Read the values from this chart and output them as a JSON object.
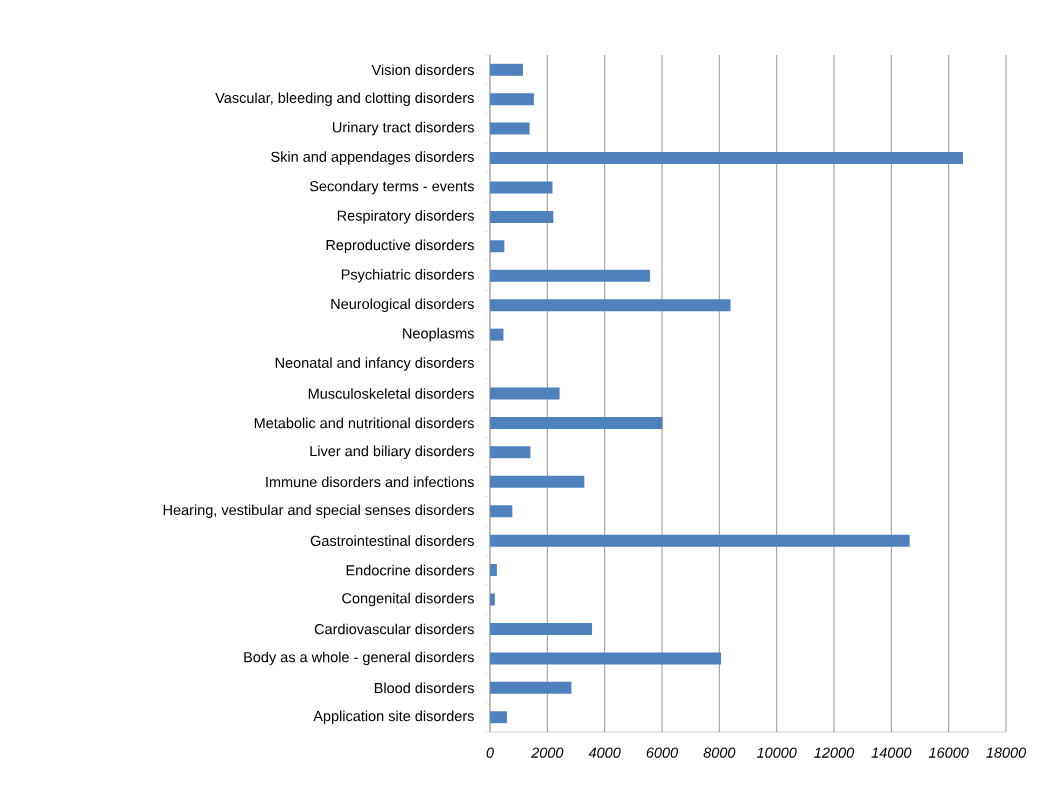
{
  "chart_data": {
    "type": "bar",
    "orientation": "horizontal",
    "categories": [
      "Vision disorders",
      "Vascular, bleeding and clotting disorders",
      "Urinary tract disorders",
      "Skin and appendages disorders",
      "Secondary terms - events",
      "Respiratory disorders",
      "Reproductive disorders",
      "Psychiatric disorders",
      "Neurological disorders",
      "Neoplasms",
      "Neonatal and infancy disorders",
      "Musculoskeletal disorders",
      "Metabolic and nutritional disorders",
      "Liver and biliary disorders",
      "Immune disorders and infections",
      "Hearing, vestibular and special senses disorders",
      "Gastrointestinal disorders",
      "Endocrine disorders",
      "Congenital disorders",
      "Cardiovascular disorders",
      "Body as a whole - general disorders",
      "Blood disorders",
      "Application site disorders"
    ],
    "values": [
      1150,
      1530,
      1380,
      16500,
      2180,
      2210,
      500,
      5580,
      8390,
      470,
      0,
      2430,
      6020,
      1410,
      3290,
      780,
      14640,
      240,
      170,
      3560,
      8060,
      2840,
      590
    ],
    "color": "#4f81bd",
    "xlim": [
      0,
      18000
    ],
    "xticks": [
      0,
      2000,
      4000,
      6000,
      8000,
      10000,
      12000,
      14000,
      16000,
      18000
    ],
    "grid": "x"
  }
}
